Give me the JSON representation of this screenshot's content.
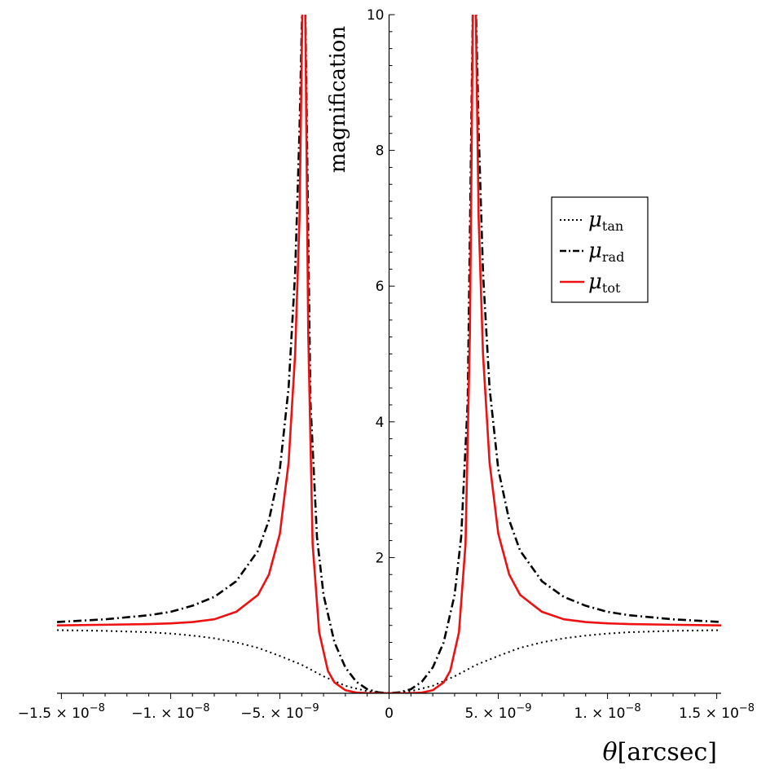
{
  "chart_data": {
    "type": "line",
    "xlabel_symbol": "θ",
    "xlabel_unit": "[arcsec]",
    "ylabel": "magnification",
    "xlim": [
      -1.52e-08,
      1.52e-08
    ],
    "ylim": [
      0,
      10
    ],
    "x_ticks": [
      {
        "value": -1.5e-08,
        "mantissa": "−1.5",
        "exp": "−8"
      },
      {
        "value": -1e-08,
        "mantissa": "−1.",
        "exp": "−8"
      },
      {
        "value": -5e-09,
        "mantissa": "−5.",
        "exp": "−9"
      },
      {
        "value": 0,
        "mantissa": "0",
        "exp": ""
      },
      {
        "value": 5e-09,
        "mantissa": "5.",
        "exp": "−9"
      },
      {
        "value": 1e-08,
        "mantissa": "1.",
        "exp": "−8"
      },
      {
        "value": 1.5e-08,
        "mantissa": "1.5",
        "exp": "−8"
      }
    ],
    "y_ticks": [
      2,
      4,
      6,
      8,
      10
    ],
    "legend_position": "right",
    "grid": false,
    "series": [
      {
        "name": "μ_tan",
        "symbol": "μ",
        "subscript": "tan",
        "color": "#000000",
        "style": "dotted",
        "x": [
          -1.52e-08,
          -1.3e-08,
          -1.1e-08,
          -1e-08,
          -9e-09,
          -8e-09,
          -7e-09,
          -6e-09,
          -5e-09,
          -4e-09,
          -3e-09,
          -2e-09,
          -1e-09,
          0,
          1e-09,
          2e-09,
          3e-09,
          4e-09,
          5e-09,
          6e-09,
          7e-09,
          8e-09,
          9e-09,
          1e-08,
          1.1e-08,
          1.3e-08,
          1.52e-08
        ],
        "values": [
          0.93,
          0.92,
          0.9,
          0.88,
          0.85,
          0.81,
          0.75,
          0.67,
          0.55,
          0.42,
          0.25,
          0.11,
          0.03,
          0.0,
          0.03,
          0.11,
          0.25,
          0.42,
          0.55,
          0.67,
          0.75,
          0.81,
          0.85,
          0.88,
          0.9,
          0.92,
          0.93
        ]
      },
      {
        "name": "μ_rad",
        "symbol": "μ",
        "subscript": "rad",
        "color": "#000000",
        "style": "dashdot",
        "x": [
          -1.52e-08,
          -1.3e-08,
          -1.1e-08,
          -1e-08,
          -9e-09,
          -8e-09,
          -7e-09,
          -6e-09,
          -5.5e-09,
          -5e-09,
          -4.6e-09,
          -4.3e-09,
          -4.1e-09,
          -3.95e-09,
          -3.85e-09,
          -3.6e-09,
          -3.3e-09,
          -3e-09,
          -2.5e-09,
          -2e-09,
          -1.5e-09,
          -1e-09,
          -5e-10,
          0,
          5e-10,
          1e-09,
          1.5e-09,
          2e-09,
          2.5e-09,
          3e-09,
          3.3e-09,
          3.6e-09,
          3.85e-09,
          3.95e-09,
          4.1e-09,
          4.3e-09,
          4.6e-09,
          5e-09,
          5.5e-09,
          6e-09,
          7e-09,
          8e-09,
          9e-09,
          1e-08,
          1.1e-08,
          1.3e-08,
          1.52e-08
        ],
        "values": [
          1.05,
          1.09,
          1.15,
          1.2,
          1.29,
          1.42,
          1.65,
          2.1,
          2.55,
          3.3,
          4.5,
          6.2,
          8.3,
          10.5,
          10.5,
          4.3,
          2.3,
          1.45,
          0.75,
          0.38,
          0.17,
          0.06,
          0.015,
          0.0,
          0.015,
          0.06,
          0.17,
          0.38,
          0.75,
          1.45,
          2.3,
          4.3,
          10.5,
          10.5,
          8.3,
          6.2,
          4.5,
          3.3,
          2.55,
          2.1,
          1.65,
          1.42,
          1.29,
          1.2,
          1.15,
          1.09,
          1.05
        ]
      },
      {
        "name": "μ_tot",
        "symbol": "μ",
        "subscript": "tot",
        "color": "#ee1111",
        "style": "solid",
        "x": [
          -1.52e-08,
          -1.3e-08,
          -1.1e-08,
          -1e-08,
          -9e-09,
          -8e-09,
          -7e-09,
          -6e-09,
          -5.5e-09,
          -5e-09,
          -4.6e-09,
          -4.3e-09,
          -4.1e-09,
          -3.95e-09,
          -3.85e-09,
          -3.7e-09,
          -3.5e-09,
          -3.2e-09,
          -2.8e-09,
          -2.5e-09,
          -2e-09,
          -1.5e-09,
          -1e-09,
          -5e-10,
          0,
          5e-10,
          1e-09,
          1.5e-09,
          2e-09,
          2.5e-09,
          2.8e-09,
          3.2e-09,
          3.5e-09,
          3.7e-09,
          3.85e-09,
          3.95e-09,
          4.1e-09,
          4.3e-09,
          4.6e-09,
          5e-09,
          5.5e-09,
          6e-09,
          7e-09,
          8e-09,
          9e-09,
          1e-08,
          1.1e-08,
          1.3e-08,
          1.52e-08
        ],
        "values": [
          1.0,
          1.01,
          1.02,
          1.03,
          1.05,
          1.09,
          1.2,
          1.45,
          1.75,
          2.35,
          3.4,
          5.0,
          7.0,
          10.5,
          10.5,
          5.3,
          2.2,
          0.9,
          0.33,
          0.16,
          0.045,
          0.01,
          0.002,
          0.0,
          0.0,
          0.0,
          0.002,
          0.01,
          0.045,
          0.16,
          0.33,
          0.9,
          2.2,
          5.3,
          10.5,
          10.5,
          7.0,
          5.0,
          3.4,
          2.35,
          1.75,
          1.45,
          1.2,
          1.09,
          1.05,
          1.03,
          1.02,
          1.01,
          1.0
        ]
      }
    ]
  }
}
